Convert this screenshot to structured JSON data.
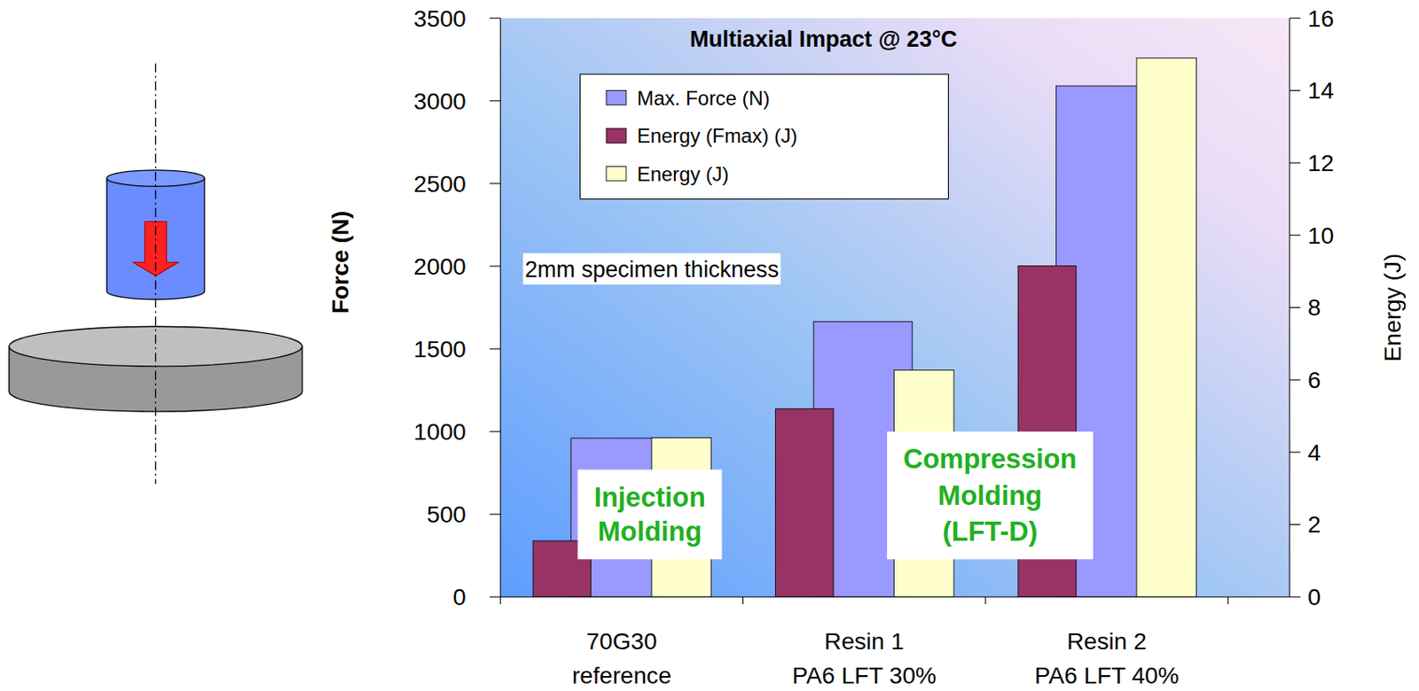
{
  "chart_data": {
    "type": "bar",
    "title": "Multiaxial Impact @ 23°C",
    "categories": [
      "70G30\nreference",
      "Resin 1\nPA6 LFT 30%",
      "Resin 2\nPA6 LFT 40%"
    ],
    "series": [
      {
        "name": "Max. Force (N)",
        "color": "#9999ff",
        "values": [
          960,
          1665,
          3090
        ]
      },
      {
        "name": "Energy (Fmax) (J)",
        "color": "#993366",
        "axis": "y2",
        "values": [
          1.55,
          5.2,
          9.15
        ]
      },
      {
        "name": "Energy (J)",
        "color": "#ffffcc",
        "axis": "y2",
        "values": [
          4.4,
          6.27,
          14.9
        ]
      }
    ],
    "y_label": "Force (N)",
    "y2_label": "Energy (J)",
    "ylim": [
      0,
      3500
    ],
    "yticks": [
      0,
      500,
      1000,
      1500,
      2000,
      2500,
      3000,
      3500
    ],
    "y2lim": [
      0,
      16
    ],
    "y2ticks": [
      0,
      2,
      4,
      6,
      8,
      10,
      12,
      14,
      16
    ],
    "annotations": [
      "2mm specimen thickness",
      "Injection\nMolding",
      "Compression\nMolding\n(LFT-D)"
    ],
    "legend": "top",
    "grid": false
  }
}
